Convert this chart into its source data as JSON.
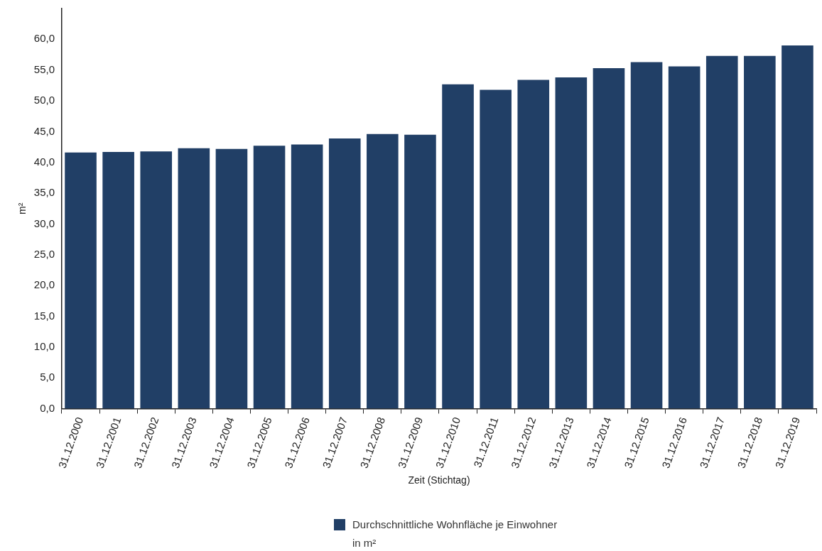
{
  "chart_data": {
    "type": "bar",
    "xlabel": "Zeit (Stichtag)",
    "ylabel": "m²",
    "categories": [
      "31.12.2000",
      "31.12.2001",
      "31.12.2002",
      "31.12.2003",
      "31.12.2004",
      "31.12.2005",
      "31.12.2006",
      "31.12.2007",
      "31.12.2008",
      "31.12.2009",
      "31.12.2010",
      "31.12.2011",
      "31.12.2012",
      "31.12.2013",
      "31.12.2014",
      "31.12.2015",
      "31.12.2016",
      "31.12.2017",
      "31.12.2018",
      "31.12.2019"
    ],
    "series": [
      {
        "name": "Durchschnittliche Wohnfläche je Einwohner in m²",
        "color": "#213f66",
        "values": [
          41.6,
          41.7,
          41.8,
          42.3,
          42.2,
          42.7,
          42.9,
          43.9,
          44.6,
          44.5,
          52.7,
          51.8,
          53.4,
          53.8,
          55.3,
          56.3,
          55.6,
          57.3,
          57.3,
          59.0
        ]
      }
    ],
    "ylim": [
      0,
      65
    ],
    "yticks": [
      {
        "value": 0,
        "label": "0,0"
      },
      {
        "value": 5,
        "label": "5,0"
      },
      {
        "value": 10,
        "label": "10,0"
      },
      {
        "value": 15,
        "label": "15,0"
      },
      {
        "value": 20,
        "label": "20,0"
      },
      {
        "value": 25,
        "label": "25,0"
      },
      {
        "value": 30,
        "label": "30,0"
      },
      {
        "value": 35,
        "label": "35,0"
      },
      {
        "value": 40,
        "label": "40,0"
      },
      {
        "value": 45,
        "label": "45,0"
      },
      {
        "value": 50,
        "label": "50,0"
      },
      {
        "value": 55,
        "label": "55,0"
      },
      {
        "value": 60,
        "label": "60,0"
      }
    ],
    "grid": false,
    "legend": "bottom"
  }
}
